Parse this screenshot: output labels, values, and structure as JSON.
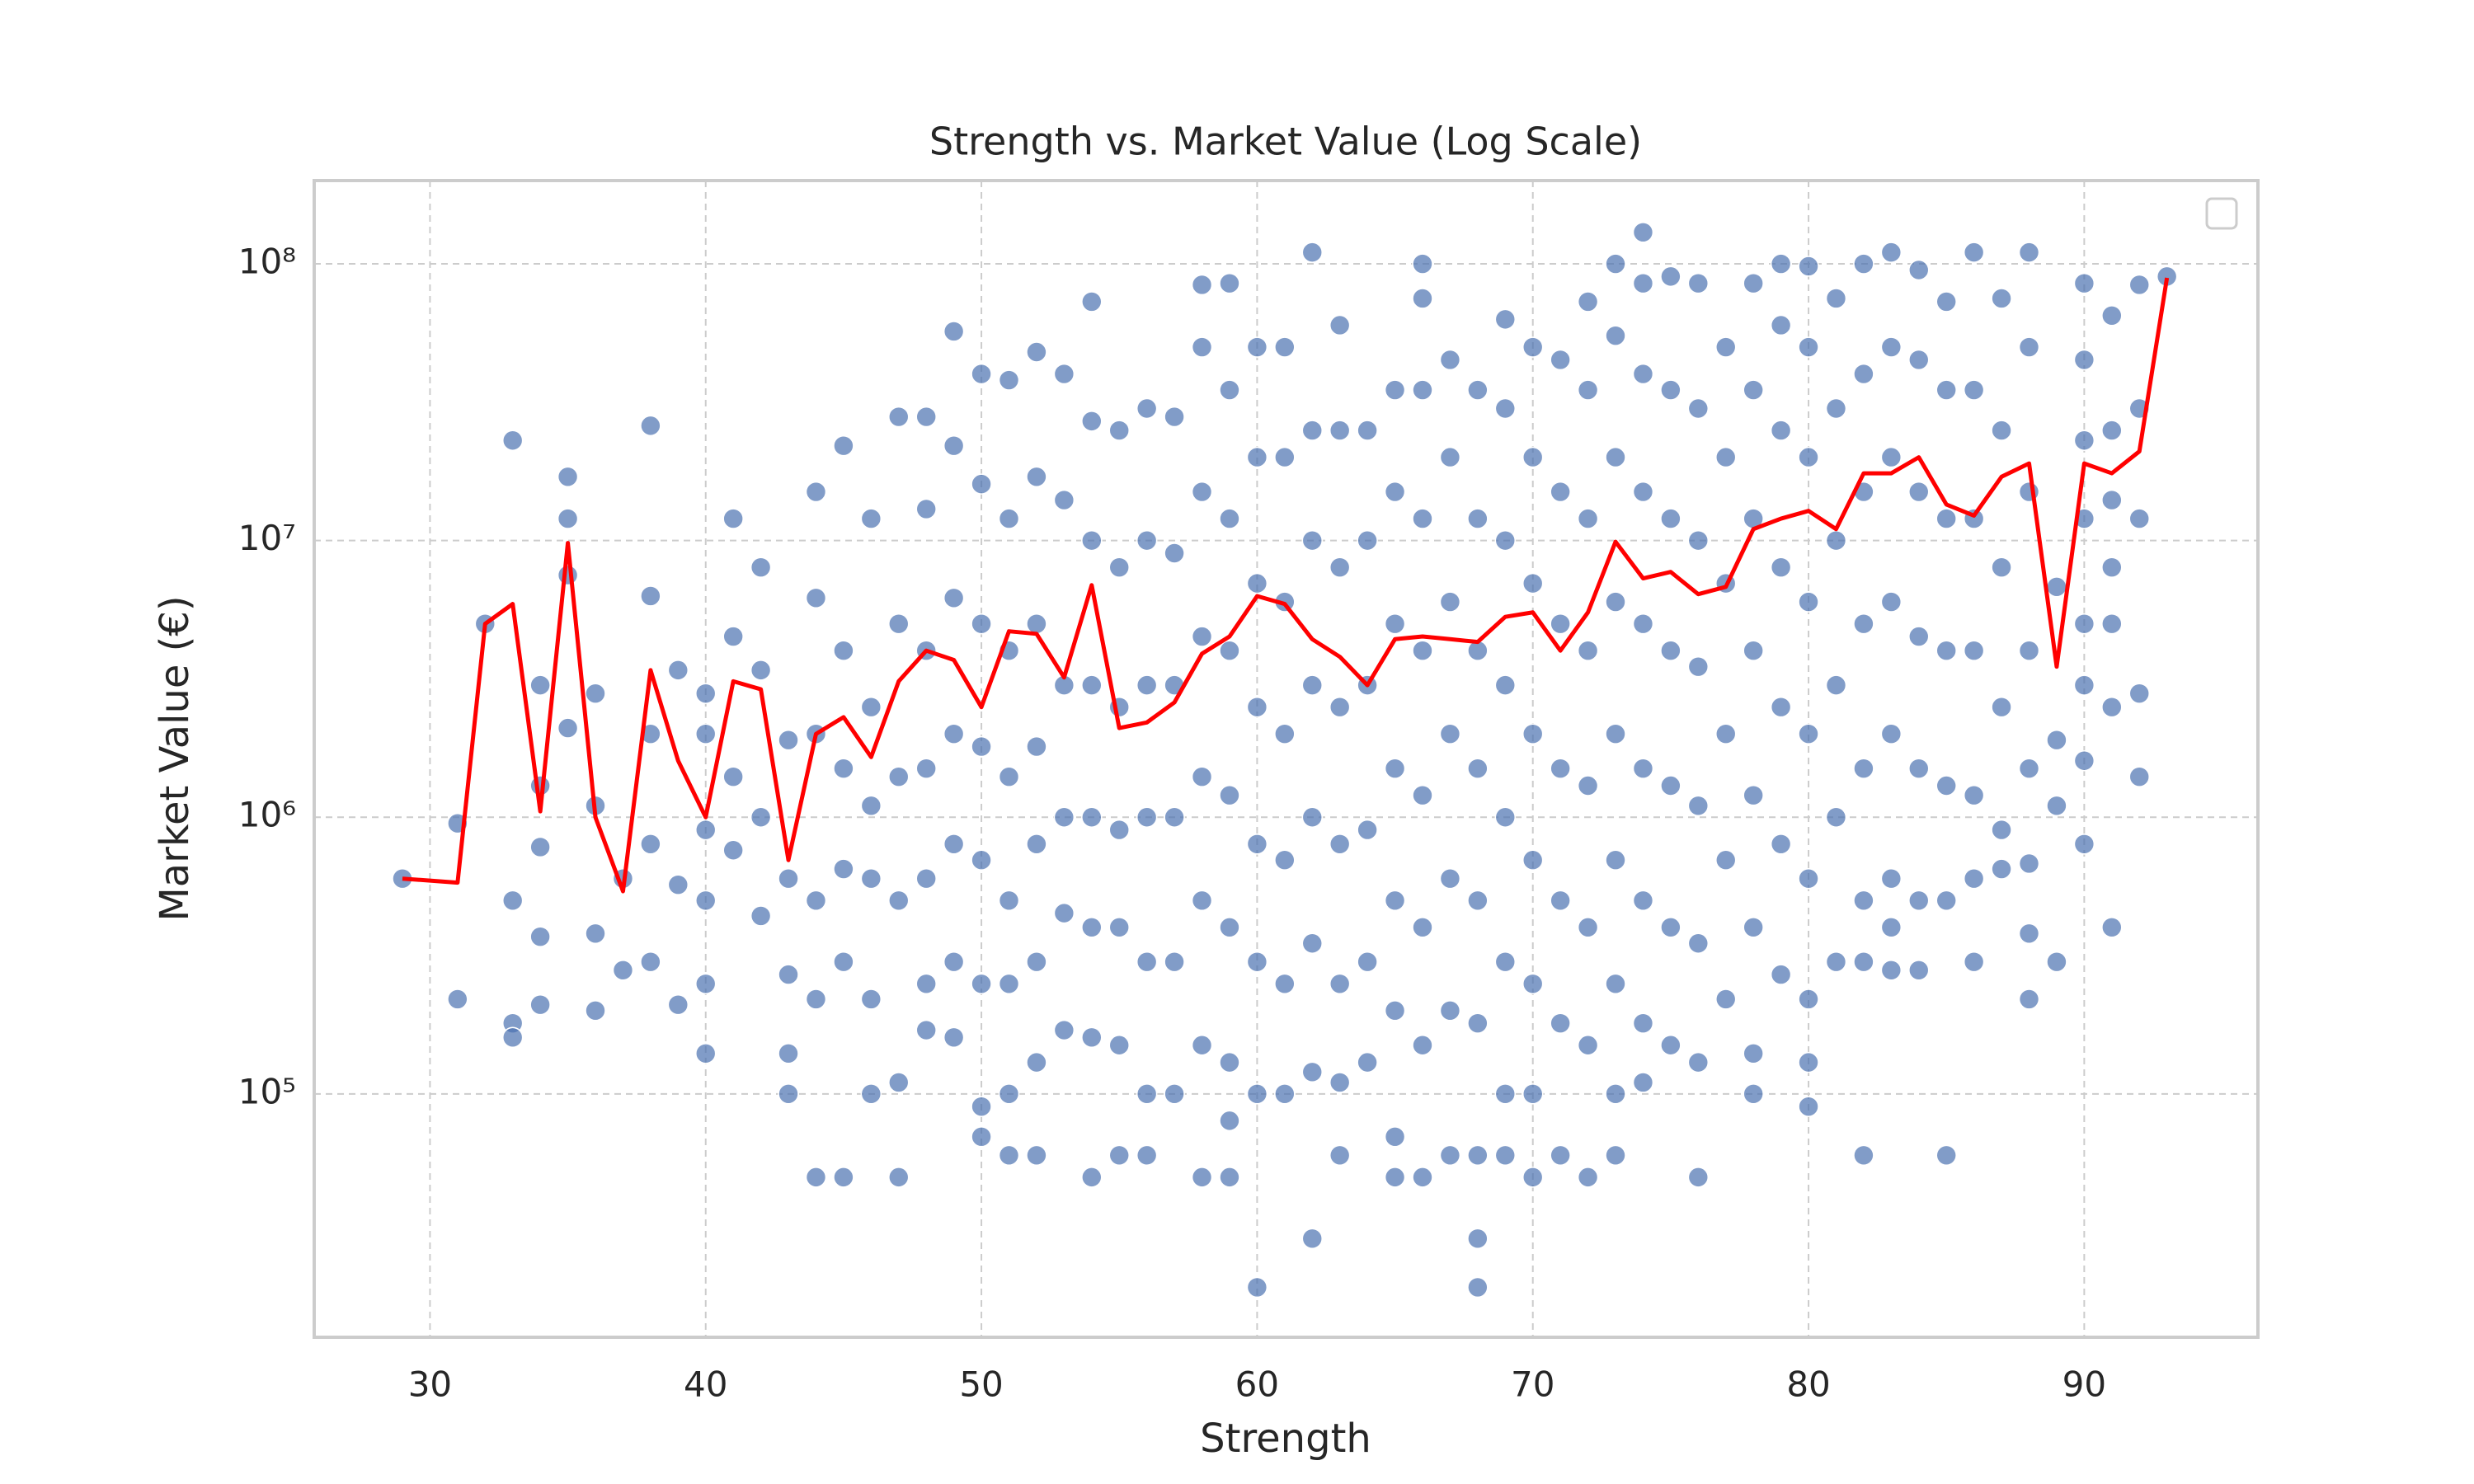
{
  "chart_data": {
    "type": "scatter",
    "title": "Strength vs. Market Value (Log Scale)",
    "x_label": "Strength",
    "y_label": "Market Value (€)",
    "xlim": [
      25.8,
      96.3
    ],
    "ylim": [
      13200,
      200000000
    ],
    "yscale": "log",
    "grid": true,
    "xticks": [
      30,
      40,
      50,
      60,
      70,
      80,
      90
    ],
    "yticks": [
      {
        "value": 100000,
        "label": "10⁵"
      },
      {
        "value": 1000000,
        "label": "10⁶"
      },
      {
        "value": 10000000,
        "label": "10⁷"
      },
      {
        "value": 100000000,
        "label": "10⁸"
      }
    ],
    "series": [
      {
        "type": "scatter",
        "color": "#4c72b0",
        "x": [
          29,
          31,
          31,
          32,
          33,
          33,
          33,
          33,
          34,
          34,
          34,
          34,
          34,
          35,
          35,
          35,
          35,
          36,
          36,
          36,
          36,
          37,
          37,
          38,
          38,
          38,
          38,
          38,
          39,
          39,
          39,
          40,
          40,
          40,
          40,
          40,
          40,
          41,
          41,
          41,
          41,
          42,
          42,
          42,
          42,
          43,
          43,
          43,
          43,
          43,
          44,
          44,
          44,
          44,
          44,
          44,
          45,
          45,
          45,
          45,
          45,
          45,
          46,
          46,
          46,
          46,
          46,
          46,
          47,
          47,
          47,
          47,
          47,
          47,
          48,
          48,
          48,
          48,
          48,
          48,
          48,
          49,
          49,
          49,
          49,
          49,
          49,
          49,
          50,
          50,
          50,
          50,
          50,
          50,
          50,
          50,
          51,
          51,
          51,
          51,
          51,
          51,
          51,
          51,
          52,
          52,
          52,
          52,
          52,
          52,
          52,
          52,
          53,
          53,
          53,
          53,
          53,
          53,
          54,
          54,
          54,
          54,
          54,
          54,
          54,
          54,
          55,
          55,
          55,
          55,
          55,
          55,
          55,
          56,
          56,
          56,
          56,
          56,
          56,
          56,
          57,
          57,
          57,
          57,
          57,
          57,
          58,
          58,
          58,
          58,
          58,
          58,
          58,
          58,
          59,
          59,
          59,
          59,
          59,
          59,
          59,
          59,
          59,
          60,
          60,
          60,
          60,
          60,
          60,
          60,
          60,
          61,
          61,
          61,
          61,
          61,
          61,
          61,
          62,
          62,
          62,
          62,
          62,
          62,
          62,
          62,
          63,
          63,
          63,
          63,
          63,
          63,
          63,
          63,
          64,
          64,
          64,
          64,
          64,
          64,
          65,
          65,
          65,
          65,
          65,
          65,
          65,
          65,
          66,
          66,
          66,
          66,
          66,
          66,
          66,
          66,
          66,
          67,
          67,
          67,
          67,
          67,
          67,
          67,
          68,
          68,
          68,
          68,
          68,
          68,
          68,
          68,
          68,
          69,
          69,
          69,
          69,
          69,
          69,
          69,
          69,
          70,
          70,
          70,
          70,
          70,
          70,
          70,
          70,
          71,
          71,
          71,
          71,
          71,
          71,
          71,
          72,
          72,
          72,
          72,
          72,
          72,
          72,
          72,
          73,
          73,
          73,
          73,
          73,
          73,
          73,
          73,
          73,
          74,
          74,
          74,
          74,
          74,
          74,
          74,
          74,
          74,
          75,
          75,
          75,
          75,
          75,
          75,
          75,
          76,
          76,
          76,
          76,
          76,
          76,
          76,
          76,
          77,
          77,
          77,
          77,
          77,
          77,
          78,
          78,
          78,
          78,
          78,
          78,
          78,
          78,
          79,
          79,
          79,
          79,
          79,
          79,
          79,
          80,
          80,
          80,
          80,
          80,
          80,
          80,
          80,
          80,
          81,
          81,
          81,
          81,
          81,
          81,
          82,
          82,
          82,
          82,
          82,
          82,
          82,
          82,
          83,
          83,
          83,
          83,
          83,
          83,
          83,
          83,
          84,
          84,
          84,
          84,
          84,
          84,
          84,
          85,
          85,
          85,
          85,
          85,
          85,
          85,
          86,
          86,
          86,
          86,
          86,
          86,
          86,
          87,
          87,
          87,
          87,
          87,
          87,
          88,
          88,
          88,
          88,
          88,
          88,
          88,
          88,
          89,
          89,
          89,
          89,
          90,
          90,
          90,
          90,
          90,
          90,
          90,
          90,
          91,
          91,
          91,
          91,
          91,
          91,
          91,
          92,
          92,
          92,
          92,
          92,
          93
        ],
        "values": [
          600000.0,
          950000.0,
          220000.0,
          5000000.0,
          23000000.0,
          500000.0,
          180000.0,
          160000.0,
          3000000.0,
          1300000.0,
          780000.0,
          370000.0,
          210000.0,
          17000000.0,
          12000000.0,
          7500000.0,
          2100000.0,
          2800000.0,
          1100000.0,
          380000.0,
          200000.0,
          600000.0,
          280000.0,
          26000000.0,
          6300000.0,
          2000000.0,
          800000.0,
          300000.0,
          3400000.0,
          570000.0,
          210000.0,
          2800000.0,
          2000000.0,
          900000.0,
          500000.0,
          250000.0,
          140000.0,
          12000000.0,
          4500000.0,
          1400000.0,
          760000.0,
          8000000.0,
          3400000.0,
          1000000.0,
          440000.0,
          1900000.0,
          600000.0,
          270000.0,
          140000.0,
          100000.0,
          15000000.0,
          6200000.0,
          2000000.0,
          500000.0,
          220000.0,
          50000.0,
          22000000.0,
          4000000.0,
          1500000.0,
          650000.0,
          300000.0,
          50000.0,
          12000000.0,
          2500000.0,
          1100000.0,
          600000.0,
          220000.0,
          100000.0,
          28000000.0,
          5000000.0,
          1400000.0,
          500000.0,
          110000.0,
          50000.0,
          28000000.0,
          13000000.0,
          4000000.0,
          1500000.0,
          600000.0,
          250000.0,
          170000.0,
          57000000.0,
          22000000.0,
          6200000.0,
          2000000.0,
          800000.0,
          300000.0,
          160000.0,
          40000000.0,
          16000000.0,
          5000000.0,
          1800000.0,
          700000.0,
          250000.0,
          90000.0,
          70000.0,
          38000000.0,
          12000000.0,
          4000000.0,
          1400000.0,
          500000.0,
          250000.0,
          100000.0,
          60000.0,
          48000000.0,
          17000000.0,
          5000000.0,
          1800000.0,
          800000.0,
          300000.0,
          130000.0,
          60000.0,
          40000000.0,
          14000000.0,
          3000000.0,
          1000000.0,
          450000.0,
          170000.0,
          73000000.0,
          27000000.0,
          10000000.0,
          3000000.0,
          1000000.0,
          400000.0,
          160000.0,
          50000.0,
          25000000.0,
          8000000.0,
          2500000.0,
          900000.0,
          400000.0,
          150000.0,
          60000.0,
          30000000.0,
          10000000.0,
          3000000.0,
          1000000.0,
          300000.0,
          100000.0,
          60000.0,
          28000000.0,
          9000000.0,
          3000000.0,
          1000000.0,
          300000.0,
          100000.0,
          84000000.0,
          50000000.0,
          15000000.0,
          4500000.0,
          1400000.0,
          500000.0,
          150000.0,
          50000.0,
          85000000.0,
          35000000.0,
          12000000.0,
          4000000.0,
          1200000.0,
          400000.0,
          130000.0,
          80000.0,
          50000.0,
          50000000.0,
          20000000.0,
          7000000.0,
          2500000.0,
          800000.0,
          300000.0,
          100000.0,
          20000.0,
          50000000.0,
          20000000.0,
          6000000.0,
          2000000.0,
          700000.0,
          250000.0,
          100000.0,
          110000000.0,
          25000000.0,
          10000000.0,
          3000000.0,
          1000000.0,
          350000.0,
          120000.0,
          30000.0,
          60000000.0,
          25000000.0,
          8000000.0,
          2500000.0,
          800000.0,
          250000.0,
          110000.0,
          60000.0,
          25000000.0,
          10000000.0,
          3000000.0,
          900000.0,
          300000.0,
          130000.0,
          35000000.0,
          15000000.0,
          5000000.0,
          1500000.0,
          500000.0,
          200000.0,
          70000.0,
          50000.0,
          100000000.0,
          75000000.0,
          35000000.0,
          12000000.0,
          4000000.0,
          1200000.0,
          400000.0,
          150000.0,
          50000.0,
          45000000.0,
          20000000.0,
          6000000.0,
          2000000.0,
          600000.0,
          200000.0,
          60000.0,
          35000000.0,
          12000000.0,
          4000000.0,
          1500000.0,
          500000.0,
          180000.0,
          60000.0,
          30000.0,
          20000.0,
          63000000.0,
          30000000.0,
          10000000.0,
          3000000.0,
          1000000.0,
          300000.0,
          100000.0,
          60000.0,
          50000000.0,
          20000000.0,
          7000000.0,
          2000000.0,
          700000.0,
          250000.0,
          100000.0,
          50000.0,
          45000000.0,
          15000000.0,
          5000000.0,
          1500000.0,
          500000.0,
          180000.0,
          60000.0,
          73000000.0,
          35000000.0,
          12000000.0,
          4000000.0,
          1300000.0,
          400000.0,
          150000.0,
          50000.0,
          100000000.0,
          55000000.0,
          20000000.0,
          6000000.0,
          2000000.0,
          700000.0,
          250000.0,
          100000.0,
          60000.0,
          130000000.0,
          85000000.0,
          40000000.0,
          15000000.0,
          5000000.0,
          1500000.0,
          500000.0,
          180000.0,
          110000.0,
          90000000.0,
          35000000.0,
          12000000.0,
          4000000.0,
          1300000.0,
          400000.0,
          150000.0,
          85000000.0,
          30000000.0,
          10000000.0,
          3500000.0,
          1100000.0,
          350000.0,
          130000.0,
          50000.0,
          50000000.0,
          20000000.0,
          7000000.0,
          2000000.0,
          700000.0,
          220000.0,
          85000000.0,
          35000000.0,
          12000000.0,
          4000000.0,
          1200000.0,
          400000.0,
          140000.0,
          100000.0,
          100000000.0,
          60000000.0,
          25000000.0,
          8000000.0,
          2500000.0,
          800000.0,
          270000.0,
          98000000.0,
          50000000.0,
          20000000.0,
          6000000.0,
          2000000.0,
          600000.0,
          220000.0,
          130000.0,
          90000.0,
          75000000.0,
          30000000.0,
          10000000.0,
          3000000.0,
          1000000.0,
          300000.0,
          100000000.0,
          40000000.0,
          15000000.0,
          5000000.0,
          1500000.0,
          500000.0,
          300000.0,
          60000.0,
          110000000.0,
          50000000.0,
          20000000.0,
          6000000.0,
          2000000.0,
          600000.0,
          400000.0,
          280000.0,
          95000000.0,
          45000000.0,
          15000000.0,
          4500000.0,
          1500000.0,
          500000.0,
          280000.0,
          73000000.0,
          35000000.0,
          12000000.0,
          4000000.0,
          1300000.0,
          500000.0,
          60000.0,
          110000000.0,
          35000000.0,
          12000000.0,
          4000000.0,
          1200000.0,
          600000.0,
          300000.0,
          75000000.0,
          25000000.0,
          8000000.0,
          2500000.0,
          900000.0,
          650000.0,
          110000000.0,
          50000000.0,
          15000000.0,
          4000000.0,
          1500000.0,
          680000.0,
          380000.0,
          220000.0,
          6800000.0,
          1900000.0,
          1100000.0,
          300000.0,
          85000000.0,
          45000000.0,
          23000000.0,
          12000000.0,
          5000000.0,
          3000000.0,
          1600000.0,
          800000.0,
          65000000.0,
          25000000.0,
          14000000.0,
          8000000.0,
          5000000.0,
          2500000.0,
          400000.0,
          84000000.0,
          30000000.0,
          12000000.0,
          2800000.0,
          1400000.0,
          90000000.0
        ]
      },
      {
        "type": "line",
        "color": "#ff0000",
        "x": [
          29,
          31,
          32,
          33,
          34,
          35,
          36,
          37,
          38,
          39,
          40,
          41,
          42,
          43,
          44,
          45,
          46,
          47,
          48,
          49,
          50,
          51,
          52,
          53,
          54,
          55,
          56,
          57,
          58,
          59,
          60,
          61,
          62,
          63,
          64,
          65,
          66,
          67,
          68,
          69,
          70,
          71,
          72,
          73,
          74,
          75,
          76,
          77,
          78,
          79,
          80,
          81,
          82,
          83,
          84,
          85,
          86,
          87,
          88,
          89,
          90,
          91,
          92,
          93
        ],
        "values": [
          600000.0,
          580000.0,
          5000000.0,
          5900000.0,
          1050000.0,
          9800000.0,
          1000000.0,
          540000.0,
          3400000.0,
          1600000.0,
          1000000.0,
          3100000.0,
          2900000.0,
          700000.0,
          2000000.0,
          2300000.0,
          1650000.0,
          3100000.0,
          4000000.0,
          3700000.0,
          2500000.0,
          4700000.0,
          4600000.0,
          3200000.0,
          6900000.0,
          2100000.0,
          2200000.0,
          2600000.0,
          3900000.0,
          4500000.0,
          6300000.0,
          5900000.0,
          4400000.0,
          3800000.0,
          3000000.0,
          4400000.0,
          4500000.0,
          4400000.0,
          4300000.0,
          5300000.0,
          5500000.0,
          4000000.0,
          5500000.0,
          9900000.0,
          7300000.0,
          7700000.0,
          6400000.0,
          6800000.0,
          11000000.0,
          12000000.0,
          12800000.0,
          11000000.0,
          17500000.0,
          17500000.0,
          20000000.0,
          13500000.0,
          12300000.0,
          17000000.0,
          19000000.0,
          3500000.0,
          19000000.0,
          17500000.0,
          21000000.0,
          89000000.0
        ]
      }
    ]
  }
}
